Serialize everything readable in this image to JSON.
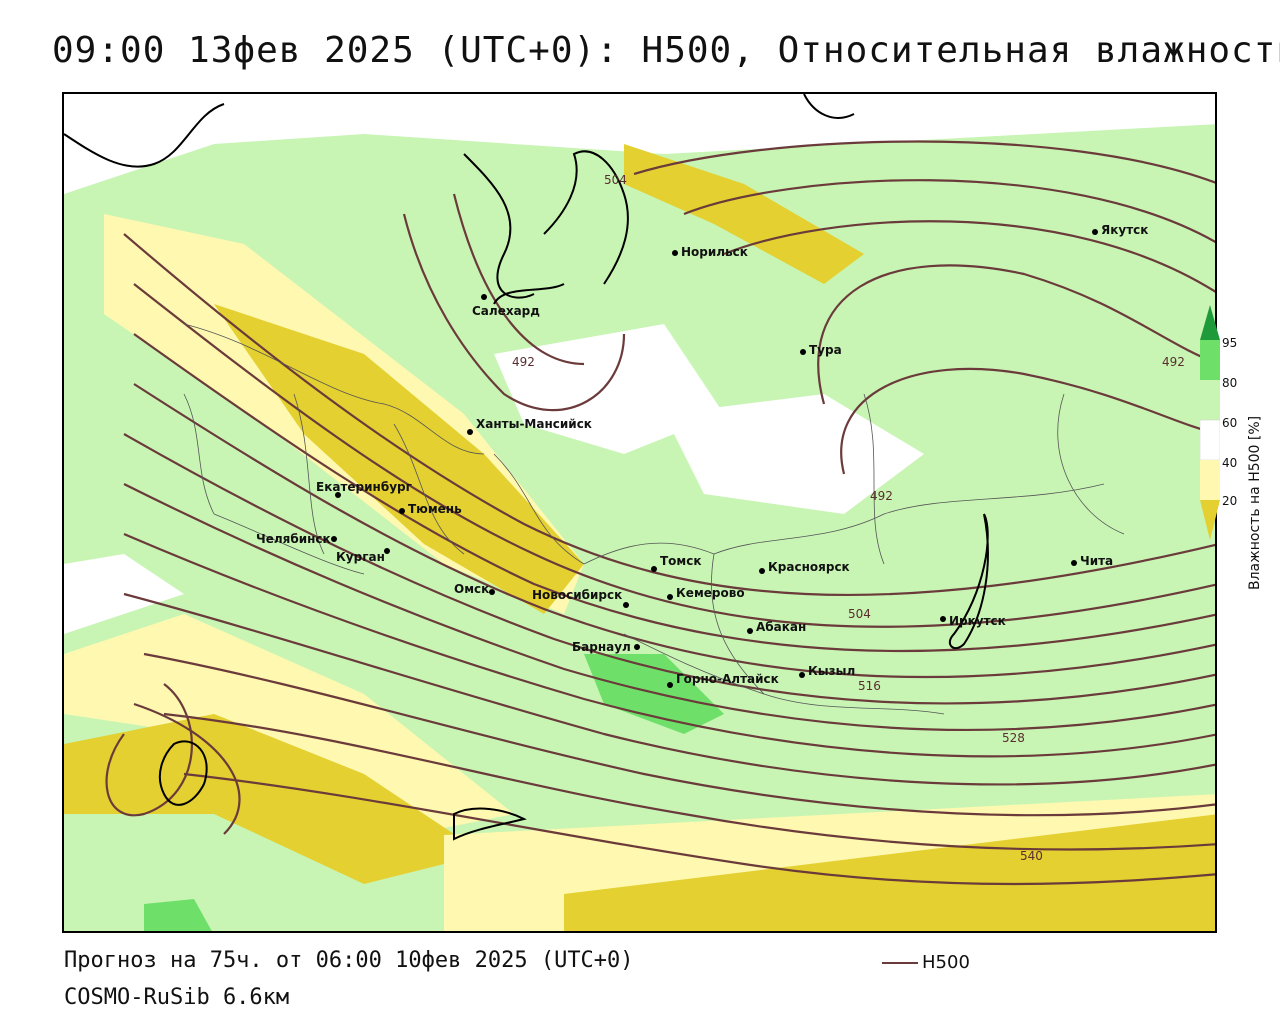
{
  "title": "09:00 13фев 2025 (UTC+0): H500, Относительная влажность",
  "footer": {
    "forecast": "Прогноз на 75ч. от 06:00 10фев 2025 (UTC+0)",
    "model": "COSMO-RuSib 6.6км"
  },
  "legend": {
    "label": "H500",
    "line_color": "#6b3a3a"
  },
  "colorbar": {
    "title": "Влажность на H500 [%]",
    "ticks": [
      "95",
      "80",
      "60",
      "40",
      "20"
    ],
    "colors": {
      "very_dry": "#e4d030",
      "dry": "#fff8b0",
      "neutral": "#ffffff",
      "moist": "#c8f5b4",
      "wet": "#6ee06a",
      "very_wet": "#1f9a3a"
    }
  },
  "cities": [
    {
      "name": "Салехард"
    },
    {
      "name": "Норильск"
    },
    {
      "name": "Якутск"
    },
    {
      "name": "Тура"
    },
    {
      "name": "Ханты-Мансийск"
    },
    {
      "name": "Екатеринбург"
    },
    {
      "name": "Тюмень"
    },
    {
      "name": "Челябинск"
    },
    {
      "name": "Курган"
    },
    {
      "name": "Омск"
    },
    {
      "name": "Новосибирск"
    },
    {
      "name": "Томск"
    },
    {
      "name": "Кемерово"
    },
    {
      "name": "Красноярск"
    },
    {
      "name": "Абакан"
    },
    {
      "name": "Барнаул"
    },
    {
      "name": "Горно-Алтайск"
    },
    {
      "name": "Кызыл"
    },
    {
      "name": "Иркутск"
    },
    {
      "name": "Чита"
    }
  ],
  "contour_labels": [
    "504",
    "492",
    "492",
    "492",
    "504",
    "516",
    "528",
    "540"
  ]
}
